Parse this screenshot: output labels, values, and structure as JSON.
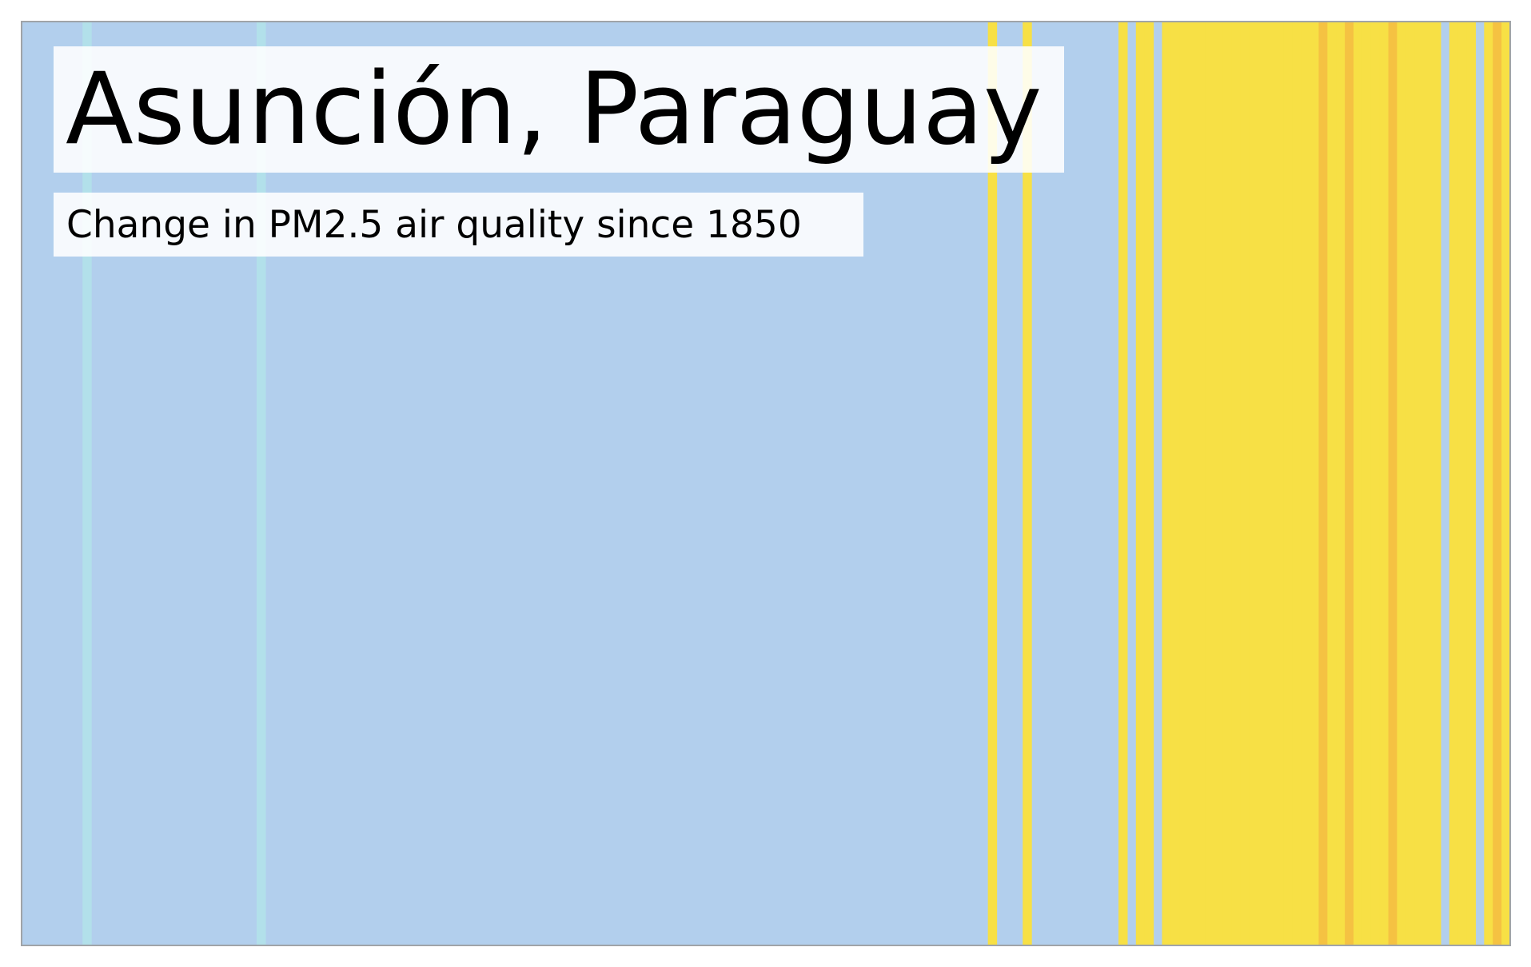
{
  "title": "Asunción, Paraguay",
  "subtitle": "Change in PM2.5 air quality since 1850",
  "colors": {
    "background": "#b2cfed",
    "very_low": "#b2e0ea",
    "low": "#b2cfed",
    "moderate": "#f7e045",
    "elevated": "#f5c242",
    "frame": "#a0a4a8"
  },
  "chart_data": {
    "type": "heatmap",
    "title": "Asunción, Paraguay",
    "subtitle": "Change in PM2.5 air quality since 1850",
    "x_range": [
      1850,
      2021
    ],
    "grid": false,
    "legend": "none",
    "bands": [
      {
        "year": 1857,
        "category": "very_low"
      },
      {
        "year": 1877,
        "category": "very_low"
      },
      {
        "year": 1961,
        "category": "moderate"
      },
      {
        "year": 1965,
        "category": "moderate"
      },
      {
        "year": 1976,
        "category": "moderate"
      },
      {
        "year": 1978,
        "category": "moderate"
      },
      {
        "year": 1979,
        "category": "moderate"
      },
      {
        "year": 1981,
        "category": "moderate"
      },
      {
        "year": 1982,
        "category": "moderate"
      },
      {
        "year": 1983,
        "category": "moderate"
      },
      {
        "year": 1984,
        "category": "moderate"
      },
      {
        "year": 1985,
        "category": "moderate"
      },
      {
        "year": 1986,
        "category": "moderate"
      },
      {
        "year": 1987,
        "category": "moderate"
      },
      {
        "year": 1988,
        "category": "moderate"
      },
      {
        "year": 1989,
        "category": "moderate"
      },
      {
        "year": 1990,
        "category": "moderate"
      },
      {
        "year": 1991,
        "category": "moderate"
      },
      {
        "year": 1992,
        "category": "moderate"
      },
      {
        "year": 1993,
        "category": "moderate"
      },
      {
        "year": 1994,
        "category": "moderate"
      },
      {
        "year": 1995,
        "category": "moderate"
      },
      {
        "year": 1996,
        "category": "moderate"
      },
      {
        "year": 1997,
        "category": "moderate"
      },
      {
        "year": 1998,
        "category": "moderate"
      },
      {
        "year": 1999,
        "category": "elevated"
      },
      {
        "year": 2000,
        "category": "moderate"
      },
      {
        "year": 2001,
        "category": "moderate"
      },
      {
        "year": 2002,
        "category": "elevated"
      },
      {
        "year": 2003,
        "category": "moderate"
      },
      {
        "year": 2004,
        "category": "moderate"
      },
      {
        "year": 2005,
        "category": "moderate"
      },
      {
        "year": 2006,
        "category": "moderate"
      },
      {
        "year": 2007,
        "category": "elevated"
      },
      {
        "year": 2008,
        "category": "moderate"
      },
      {
        "year": 2009,
        "category": "moderate"
      },
      {
        "year": 2010,
        "category": "moderate"
      },
      {
        "year": 2011,
        "category": "moderate"
      },
      {
        "year": 2012,
        "category": "moderate"
      },
      {
        "year": 2014,
        "category": "moderate"
      },
      {
        "year": 2015,
        "category": "moderate"
      },
      {
        "year": 2016,
        "category": "moderate"
      },
      {
        "year": 2018,
        "category": "moderate"
      },
      {
        "year": 2019,
        "category": "elevated"
      },
      {
        "year": 2020,
        "category": "moderate"
      }
    ]
  }
}
